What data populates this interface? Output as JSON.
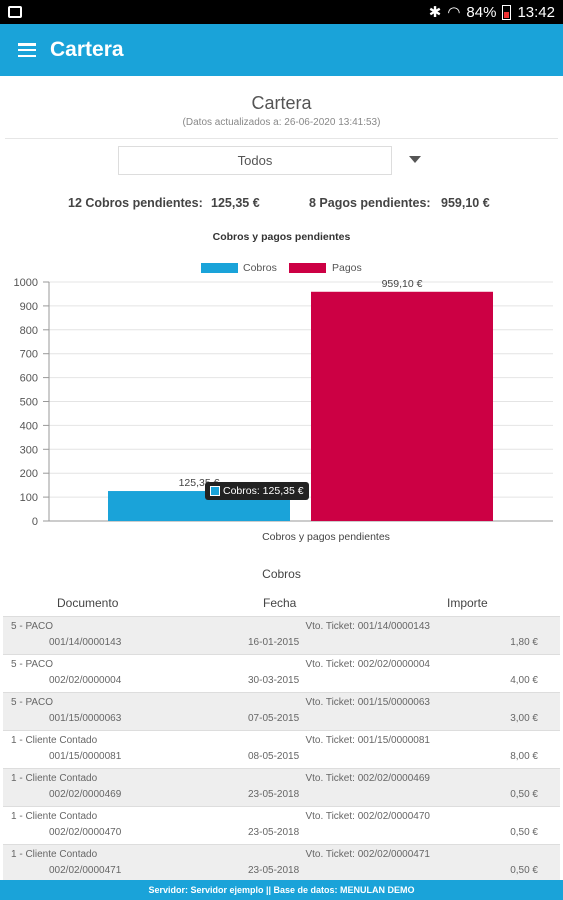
{
  "status_bar": {
    "battery": "84%",
    "time": "13:42"
  },
  "app_bar": {
    "title": "Cartera"
  },
  "header": {
    "title": "Cartera",
    "updated": "(Datos actualizados a: 26-06-2020 13:41:53)"
  },
  "filter": {
    "selected": "Todos"
  },
  "summary": {
    "cobros_label": "12 Cobros pendientes:",
    "cobros_value": "125,35 €",
    "pagos_label": "8 Pagos pendientes:",
    "pagos_value": "959,10 €"
  },
  "colors": {
    "cobros": "#1aa3d9",
    "pagos": "#cc0044",
    "accent": "#1aa3d9"
  },
  "chart_data": {
    "type": "bar",
    "title": "Cobros y pagos pendientes",
    "xlabel": "Cobros y pagos pendientes",
    "ylabel": "",
    "ylim": [
      0,
      1000
    ],
    "yticks": [
      0,
      100,
      200,
      300,
      400,
      500,
      600,
      700,
      800,
      900,
      1000
    ],
    "series": [
      {
        "name": "Cobros",
        "values": [
          125.35
        ],
        "label": "125,35 €"
      },
      {
        "name": "Pagos",
        "values": [
          959.1
        ],
        "label": "959,10 €"
      }
    ],
    "legend": "top-center",
    "grid": true
  },
  "tooltip": {
    "text": "Cobros: 125,35 €"
  },
  "cobros_section": {
    "title": "Cobros",
    "columns": [
      "Documento",
      "Fecha",
      "Importe"
    ],
    "rows": [
      {
        "client": "5 - PACO",
        "doc": "001/14/0000143",
        "concept": "Vto. Ticket: 001/14/0000143",
        "date": "16-01-2015",
        "amount": "1,80 €"
      },
      {
        "client": "5 - PACO",
        "doc": "002/02/0000004",
        "concept": "Vto. Ticket: 002/02/0000004",
        "date": "30-03-2015",
        "amount": "4,00 €"
      },
      {
        "client": "5 - PACO",
        "doc": "001/15/0000063",
        "concept": "Vto. Ticket: 001/15/0000063",
        "date": "07-05-2015",
        "amount": "3,00 €"
      },
      {
        "client": "1 - Cliente Contado",
        "doc": "001/15/0000081",
        "concept": "Vto. Ticket: 001/15/0000081",
        "date": "08-05-2015",
        "amount": "8,00 €"
      },
      {
        "client": "1 - Cliente Contado",
        "doc": "002/02/0000469",
        "concept": "Vto. Ticket: 002/02/0000469",
        "date": "23-05-2018",
        "amount": "0,50 €"
      },
      {
        "client": "1 - Cliente Contado",
        "doc": "002/02/0000470",
        "concept": "Vto. Ticket: 002/02/0000470",
        "date": "23-05-2018",
        "amount": "0,50 €"
      },
      {
        "client": "1 - Cliente Contado",
        "doc": "002/02/0000471",
        "concept": "Vto. Ticket: 002/02/0000471",
        "date": "23-05-2018",
        "amount": "0,50 €"
      }
    ]
  },
  "footer": {
    "text": "Servidor: Servidor ejemplo  ||  Base de datos: MENULAN DEMO"
  }
}
